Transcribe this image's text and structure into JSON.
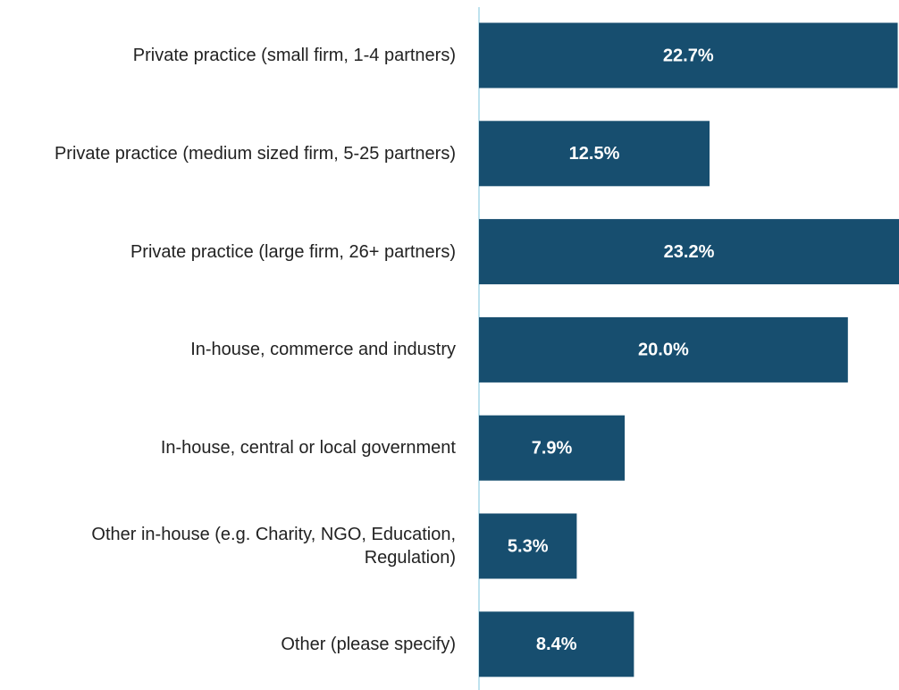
{
  "chart_data": {
    "type": "barh",
    "categories": [
      "Private practice (small firm, 1-4 partners)",
      "Private practice (medium sized firm, 5-25 partners)",
      "Private practice (large firm, 26+ partners)",
      "In-house, commerce and industry",
      "In-house, central or local government",
      "Other in-house (e.g. Charity, NGO, Education, Regulation)",
      "Other (please specify)"
    ],
    "values": [
      22.7,
      12.5,
      23.2,
      20.0,
      7.9,
      5.3,
      8.4
    ],
    "value_labels": [
      "22.7%",
      "12.5%",
      "23.2%",
      "20.0%",
      "7.9%",
      "5.3%",
      "8.4%"
    ],
    "color": "#174e6f"
  }
}
